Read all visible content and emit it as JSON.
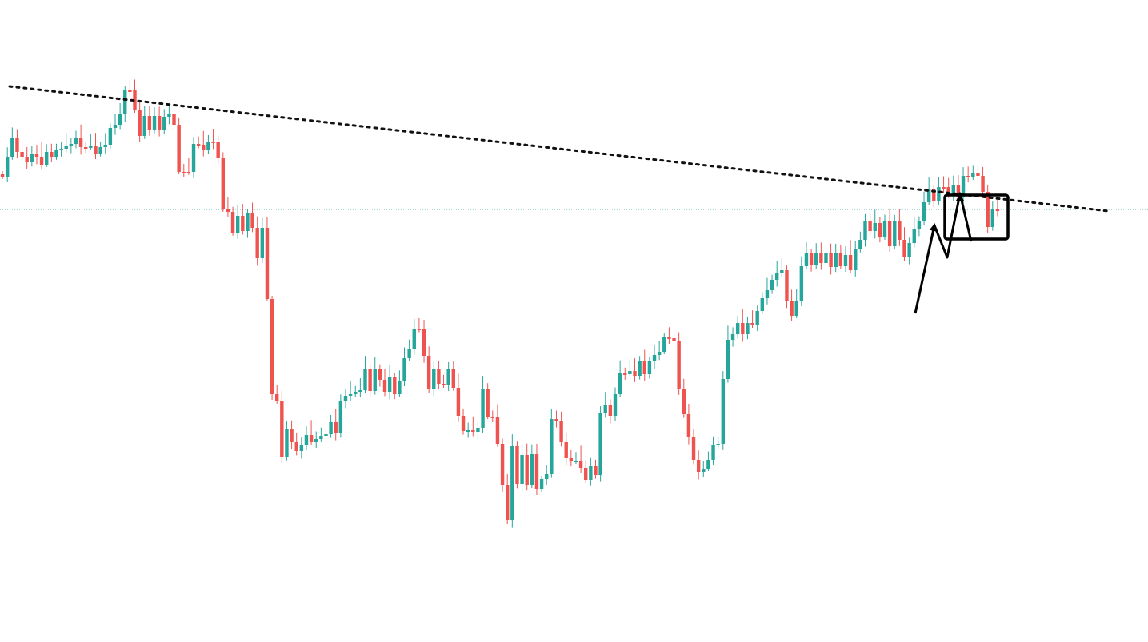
{
  "colors": {
    "up": "#26a69a",
    "down": "#ef5350",
    "background": "#ffffff",
    "trendline": "#111111",
    "annotation": "#000000",
    "reference_line": "#26a69a"
  },
  "chart_data": {
    "type": "candlestick",
    "title": "",
    "xlabel": "",
    "ylabel": "",
    "grid": false,
    "legend": "none",
    "axes_visible": false,
    "ylim": [
      0,
      803
    ],
    "x_count": 212,
    "reference_level": 262,
    "open_close": [
      [
        218,
        221
      ],
      [
        221,
        196
      ],
      [
        196,
        172
      ],
      [
        172,
        190
      ],
      [
        190,
        196
      ],
      [
        196,
        203
      ],
      [
        203,
        192
      ],
      [
        192,
        196
      ],
      [
        196,
        206
      ],
      [
        206,
        190
      ],
      [
        190,
        196
      ],
      [
        196,
        188
      ],
      [
        188,
        186
      ],
      [
        186,
        183
      ],
      [
        183,
        180
      ],
      [
        180,
        172
      ],
      [
        172,
        184
      ],
      [
        184,
        185
      ],
      [
        185,
        182
      ],
      [
        182,
        192
      ],
      [
        192,
        184
      ],
      [
        184,
        181
      ],
      [
        181,
        160
      ],
      [
        160,
        156
      ],
      [
        156,
        143
      ],
      [
        143,
        113
      ],
      [
        113,
        113
      ],
      [
        113,
        138
      ],
      [
        138,
        170
      ],
      [
        170,
        145
      ],
      [
        145,
        162
      ],
      [
        162,
        145
      ],
      [
        145,
        162
      ],
      [
        162,
        146
      ],
      [
        146,
        143
      ],
      [
        143,
        156
      ],
      [
        156,
        215
      ],
      [
        215,
        215
      ],
      [
        215,
        215
      ],
      [
        215,
        180
      ],
      [
        180,
        181
      ],
      [
        181,
        187
      ],
      [
        187,
        177
      ],
      [
        177,
        177
      ],
      [
        177,
        198
      ],
      [
        198,
        262
      ],
      [
        262,
        265
      ],
      [
        265,
        291
      ],
      [
        291,
        270
      ],
      [
        270,
        289
      ],
      [
        289,
        267
      ],
      [
        267,
        285
      ],
      [
        285,
        323
      ],
      [
        323,
        285
      ],
      [
        285,
        374
      ],
      [
        374,
        493
      ],
      [
        493,
        501
      ],
      [
        501,
        571
      ],
      [
        571,
        537
      ],
      [
        537,
        553
      ],
      [
        553,
        564
      ],
      [
        564,
        557
      ],
      [
        557,
        544
      ],
      [
        544,
        553
      ],
      [
        553,
        549
      ],
      [
        549,
        545
      ],
      [
        545,
        543
      ],
      [
        543,
        528
      ],
      [
        528,
        542
      ],
      [
        542,
        501
      ],
      [
        501,
        495
      ],
      [
        495,
        493
      ],
      [
        493,
        490
      ],
      [
        490,
        488
      ],
      [
        488,
        461
      ],
      [
        461,
        489
      ],
      [
        489,
        461
      ],
      [
        461,
        475
      ],
      [
        475,
        490
      ],
      [
        490,
        471
      ],
      [
        471,
        493
      ],
      [
        493,
        476
      ],
      [
        476,
        448
      ],
      [
        448,
        436
      ],
      [
        436,
        411
      ],
      [
        411,
        411
      ],
      [
        411,
        445
      ],
      [
        445,
        486
      ],
      [
        486,
        462
      ],
      [
        462,
        480
      ],
      [
        480,
        482
      ],
      [
        482,
        462
      ],
      [
        462,
        485
      ],
      [
        485,
        520
      ],
      [
        520,
        539
      ],
      [
        539,
        538
      ],
      [
        538,
        540
      ],
      [
        540,
        535
      ],
      [
        535,
        486
      ],
      [
        486,
        521
      ],
      [
        521,
        521
      ],
      [
        521,
        555
      ],
      [
        555,
        607
      ],
      [
        607,
        651
      ],
      [
        651,
        558
      ],
      [
        558,
        606
      ],
      [
        606,
        569
      ],
      [
        569,
        607
      ],
      [
        607,
        568
      ],
      [
        568,
        612
      ],
      [
        612,
        599
      ],
      [
        599,
        593
      ],
      [
        593,
        524
      ],
      [
        524,
        526
      ],
      [
        526,
        553
      ],
      [
        553,
        573
      ],
      [
        573,
        577
      ],
      [
        577,
        576
      ],
      [
        576,
        585
      ],
      [
        585,
        600
      ],
      [
        600,
        583
      ],
      [
        583,
        594
      ],
      [
        594,
        517
      ],
      [
        517,
        507
      ],
      [
        507,
        520
      ],
      [
        520,
        493
      ],
      [
        493,
        467
      ],
      [
        467,
        468
      ],
      [
        468,
        464
      ],
      [
        464,
        470
      ],
      [
        470,
        452
      ],
      [
        452,
        468
      ],
      [
        468,
        452
      ],
      [
        452,
        444
      ],
      [
        444,
        440
      ],
      [
        440,
        422
      ],
      [
        422,
        423
      ],
      [
        423,
        427
      ],
      [
        427,
        486
      ],
      [
        486,
        518
      ],
      [
        518,
        547
      ],
      [
        547,
        575
      ],
      [
        575,
        590
      ],
      [
        590,
        586
      ],
      [
        586,
        575
      ],
      [
        575,
        557
      ],
      [
        557,
        555
      ],
      [
        555,
        474
      ],
      [
        474,
        425
      ],
      [
        425,
        418
      ],
      [
        418,
        404
      ],
      [
        404,
        418
      ],
      [
        418,
        404
      ],
      [
        404,
        407
      ],
      [
        407,
        389
      ],
      [
        389,
        373
      ],
      [
        373,
        363
      ],
      [
        363,
        350
      ],
      [
        350,
        341
      ],
      [
        341,
        338
      ],
      [
        338,
        376
      ],
      [
        376,
        395
      ],
      [
        395,
        376
      ],
      [
        376,
        333
      ],
      [
        333,
        316
      ],
      [
        316,
        332
      ],
      [
        332,
        316
      ],
      [
        316,
        329
      ],
      [
        329,
        316
      ],
      [
        316,
        334
      ],
      [
        334,
        317
      ],
      [
        317,
        333
      ],
      [
        333,
        319
      ],
      [
        319,
        338
      ],
      [
        338,
        311
      ],
      [
        311,
        300
      ],
      [
        300,
        276
      ],
      [
        276,
        289
      ],
      [
        289,
        279
      ],
      [
        279,
        297
      ],
      [
        297,
        277
      ],
      [
        277,
        308
      ],
      [
        308,
        276
      ],
      [
        276,
        300
      ],
      [
        300,
        322
      ],
      [
        322,
        304
      ],
      [
        304,
        286
      ],
      [
        286,
        276
      ],
      [
        276,
        253
      ],
      [
        253,
        236
      ],
      [
        236,
        252
      ],
      [
        252,
        234
      ],
      [
        234,
        234
      ],
      [
        234,
        243
      ],
      [
        243,
        232
      ],
      [
        232,
        247
      ],
      [
        247,
        220
      ],
      [
        220,
        222
      ],
      [
        222,
        217
      ],
      [
        217,
        220
      ],
      [
        220,
        240
      ],
      [
        240,
        284
      ],
      [
        284,
        262
      ],
      [
        262,
        262
      ]
    ],
    "trendline": [
      [
        12,
        108
      ],
      [
        1385,
        264
      ]
    ],
    "annotations": [
      {
        "type": "arrow",
        "points": [
          [
            1144,
            392
          ],
          [
            1168,
            282
          ]
        ]
      },
      {
        "type": "zigzag",
        "points": [
          [
            1168,
            282
          ],
          [
            1184,
            322
          ],
          [
            1200,
            242
          ],
          [
            1214,
            302
          ]
        ]
      },
      {
        "type": "box",
        "x": [
          1181,
          1260
        ],
        "y": [
          244,
          299
        ]
      }
    ]
  }
}
